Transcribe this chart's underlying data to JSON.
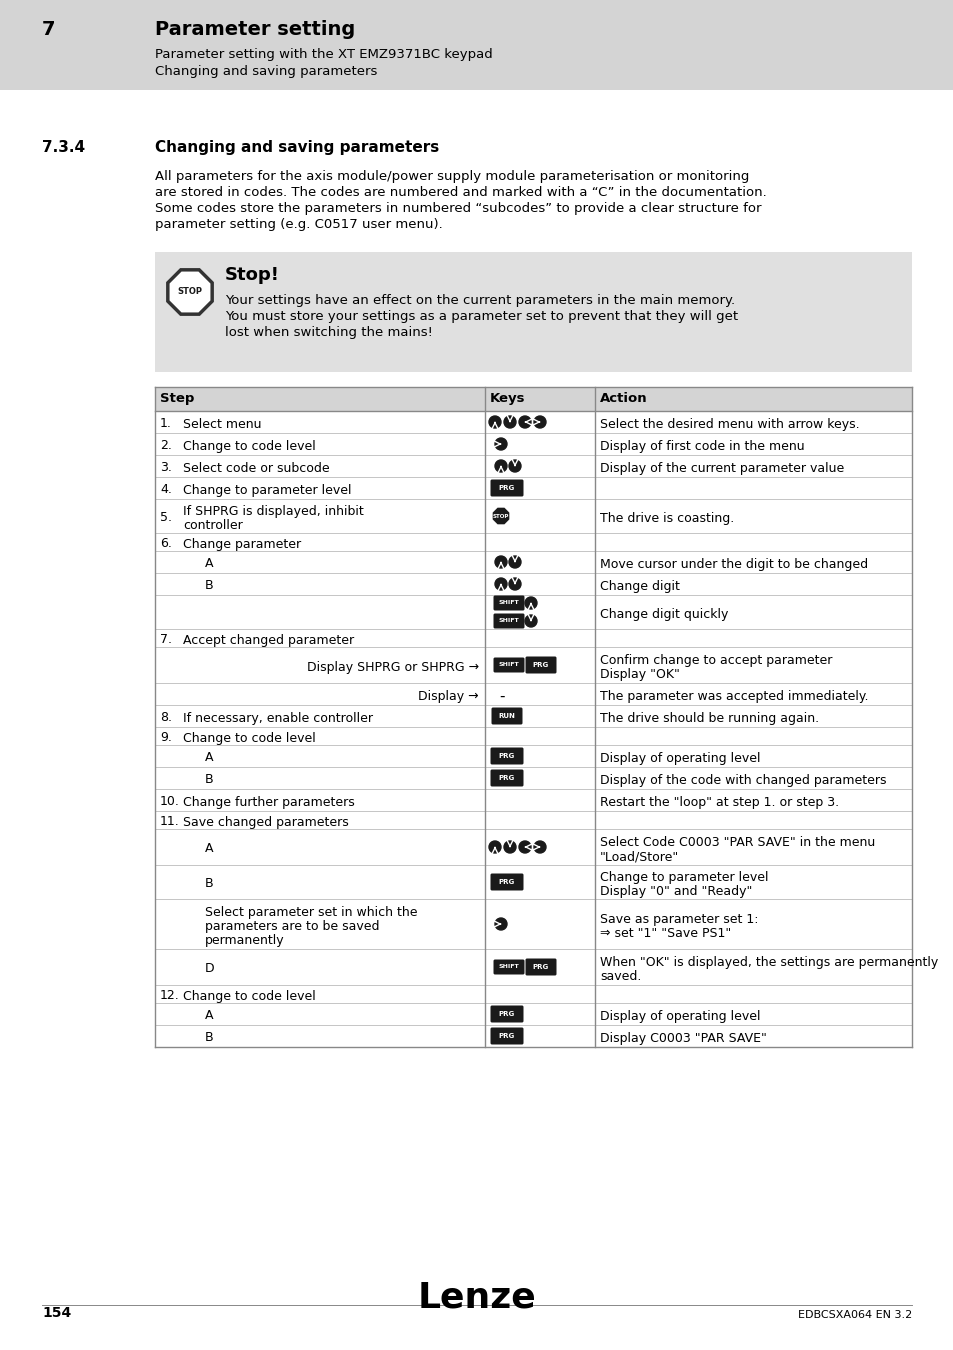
{
  "page_bg": "#ffffff",
  "header_bg": "#d4d4d4",
  "header_number": "7",
  "header_title": "Parameter setting",
  "header_sub1": "Parameter setting with the XT EMZ9371BC keypad",
  "header_sub2": "Changing and saving parameters",
  "section_number": "7.3.4",
  "section_title": "Changing and saving parameters",
  "body_text_lines": [
    "All parameters for the axis module/power supply module parameterisation or monitoring",
    "are stored in codes. The codes are numbered and marked with a “C” in the documentation.",
    "Some codes store the parameters in numbered “subcodes” to provide a clear structure for",
    "parameter setting (e.g. C0517 user menu)."
  ],
  "stop_box_bg": "#e0e0e0",
  "stop_title": "Stop!",
  "stop_text_lines": [
    "Your settings have an effect on the current parameters in the main memory.",
    "You must store your settings as a parameter set to prevent that they will get",
    "lost when switching the mains!"
  ],
  "table_header_bg": "#d4d4d4",
  "footer_page": "154",
  "footer_brand": "Lenze",
  "footer_doc": "EDBCSXA064 EN 3.2"
}
